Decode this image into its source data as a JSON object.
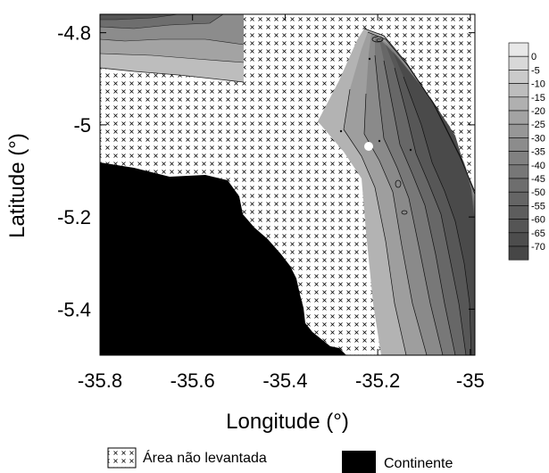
{
  "map": {
    "x_axis": {
      "label": "Longitude (°)",
      "ticks": [
        "-35.8",
        "-35.6",
        "-35.4",
        "-35.2",
        "-35"
      ],
      "tick_values": [
        -35.8,
        -35.6,
        -35.4,
        -35.2,
        -35.0
      ],
      "range": [
        -35.8,
        -34.99
      ]
    },
    "y_axis": {
      "label": "Latitude (°)",
      "ticks": [
        "-4.8",
        "-5",
        "-5.2",
        "-5.4"
      ],
      "tick_values": [
        -4.8,
        -5.0,
        -5.2,
        -5.4
      ],
      "range": [
        -5.5,
        -4.76
      ]
    },
    "depth_scale": {
      "labels": [
        "0",
        "-5",
        "-10",
        "-15",
        "-20",
        "-25",
        "-30",
        "-35",
        "-40",
        "-45",
        "-50",
        "-55",
        "-60",
        "-65",
        "-70"
      ],
      "colors": [
        "#e8e8e8",
        "#d8d8d8",
        "#cacaca",
        "#bdbdbd",
        "#b0b0b0",
        "#a3a3a3",
        "#979797",
        "#8c8c8c",
        "#818181",
        "#777777",
        "#6e6e6e",
        "#656565",
        "#5d5d5d",
        "#555555",
        "#4d4d4d",
        "#464646"
      ]
    },
    "legend": {
      "unsurveyed": "Área não levantada",
      "continent": "Continente"
    },
    "colors": {
      "continent": "#000000",
      "marker": "#ffffff"
    }
  }
}
